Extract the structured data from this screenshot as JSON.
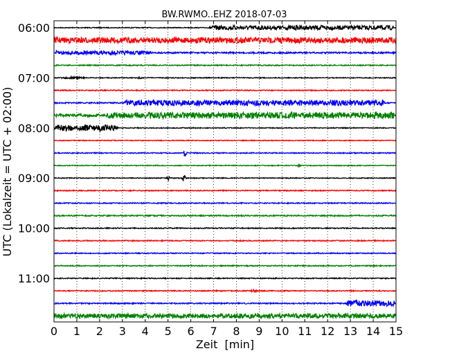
{
  "chart_data": {
    "type": "line",
    "title": "BW.RWMO..EHZ 2018-07-03",
    "xlabel": "Zeit  [min]",
    "ylabel": "UTC (Lokalzeit = UTC + 02:00)",
    "xlim": [
      0,
      15
    ],
    "x_ticks": [
      "0",
      "1",
      "2",
      "3",
      "4",
      "5",
      "6",
      "7",
      "8",
      "9",
      "10",
      "11",
      "12",
      "13",
      "14",
      "15"
    ],
    "y_tick_labels": [
      "06:00",
      "07:00",
      "08:00",
      "09:00",
      "10:00",
      "11:00"
    ],
    "grid_x": "dotted",
    "trace_interval_minutes": 15,
    "color_cycle": [
      "#000000",
      "#ff0000",
      "#0000ff",
      "#008000"
    ],
    "traces": [
      {
        "start": "06:00",
        "color": "#000000",
        "base_amplitude": 0.08,
        "bursts": [
          {
            "from": 6.8,
            "to": 15,
            "amplitude": 0.42
          }
        ]
      },
      {
        "start": "06:15",
        "color": "#ff0000",
        "base_amplitude": 0.55,
        "bursts": []
      },
      {
        "start": "06:30",
        "color": "#0000ff",
        "base_amplitude": 0.15,
        "bursts": [
          {
            "from": 0,
            "to": 4.3,
            "amplitude": 0.38
          }
        ]
      },
      {
        "start": "06:45",
        "color": "#008000",
        "base_amplitude": 0.1,
        "bursts": []
      },
      {
        "start": "07:00",
        "color": "#000000",
        "base_amplitude": 0.08,
        "bursts": [
          {
            "from": 0.3,
            "to": 1.4,
            "amplitude": 0.18
          }
        ],
        "spikes": [
          {
            "at": 3.75,
            "amplitude": 0.4
          }
        ]
      },
      {
        "start": "07:15",
        "color": "#ff0000",
        "base_amplitude": 0.1,
        "bursts": []
      },
      {
        "start": "07:30",
        "color": "#0000ff",
        "base_amplitude": 0.12,
        "bursts": [
          {
            "from": 3.1,
            "to": 14.5,
            "amplitude": 0.55
          }
        ]
      },
      {
        "start": "07:45",
        "color": "#008000",
        "base_amplitude": 0.3,
        "bursts": [
          {
            "from": 2.3,
            "to": 15,
            "amplitude": 0.6
          }
        ]
      },
      {
        "start": "08:00",
        "color": "#000000",
        "base_amplitude": 0.08,
        "bursts": [
          {
            "from": 0,
            "to": 2.8,
            "amplitude": 0.6
          }
        ]
      },
      {
        "start": "08:15",
        "color": "#ff0000",
        "base_amplitude": 0.08,
        "bursts": []
      },
      {
        "start": "08:30",
        "color": "#0000ff",
        "base_amplitude": 0.1,
        "bursts": [],
        "spikes": [
          {
            "at": 5.75,
            "amplitude": 0.9
          }
        ]
      },
      {
        "start": "08:45",
        "color": "#008000",
        "base_amplitude": 0.08,
        "bursts": [],
        "spikes": [
          {
            "at": 10.75,
            "amplitude": 0.4
          }
        ]
      },
      {
        "start": "09:00",
        "color": "#000000",
        "base_amplitude": 0.08,
        "bursts": [],
        "spikes": [
          {
            "at": 5.0,
            "amplitude": 0.5
          },
          {
            "at": 5.7,
            "amplitude": 0.9
          }
        ]
      },
      {
        "start": "09:15",
        "color": "#ff0000",
        "base_amplitude": 0.1,
        "bursts": []
      },
      {
        "start": "09:30",
        "color": "#0000ff",
        "base_amplitude": 0.1,
        "bursts": []
      },
      {
        "start": "09:45",
        "color": "#008000",
        "base_amplitude": 0.12,
        "bursts": []
      },
      {
        "start": "10:00",
        "color": "#000000",
        "base_amplitude": 0.1,
        "bursts": []
      },
      {
        "start": "10:15",
        "color": "#ff0000",
        "base_amplitude": 0.1,
        "bursts": []
      },
      {
        "start": "10:30",
        "color": "#0000ff",
        "base_amplitude": 0.1,
        "bursts": []
      },
      {
        "start": "10:45",
        "color": "#008000",
        "base_amplitude": 0.1,
        "bursts": []
      },
      {
        "start": "11:00",
        "color": "#000000",
        "base_amplitude": 0.1,
        "bursts": []
      },
      {
        "start": "11:15",
        "color": "#ff0000",
        "base_amplitude": 0.1,
        "bursts": [
          {
            "from": 8.6,
            "to": 8.9,
            "amplitude": 0.25
          }
        ]
      },
      {
        "start": "11:30",
        "color": "#0000ff",
        "base_amplitude": 0.12,
        "bursts": [
          {
            "from": 12.8,
            "to": 15,
            "amplitude": 0.55
          }
        ]
      },
      {
        "start": "11:45",
        "color": "#008000",
        "base_amplitude": 0.45,
        "bursts": []
      }
    ]
  }
}
